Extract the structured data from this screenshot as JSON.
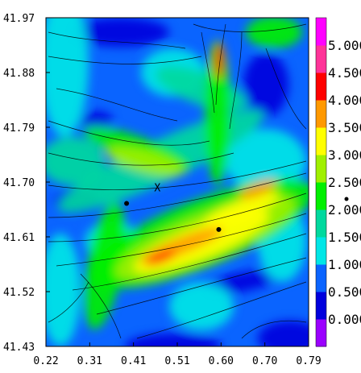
{
  "chart_data": {
    "type": "heatmap",
    "title": "",
    "xlabel": "",
    "ylabel": "",
    "xlim": [
      0.22,
      0.79
    ],
    "ylim": [
      41.43,
      41.97
    ],
    "x_ticks": [
      "0.22",
      "0.31",
      "0.41",
      "0.51",
      "0.60",
      "0.70",
      "0.79"
    ],
    "y_ticks": [
      "41.97",
      "41.88",
      "41.79",
      "41.70",
      "41.61",
      "41.52",
      "41.43"
    ],
    "overlay": "streamlines with arrowheads",
    "marker_label": "X",
    "markers": [
      {
        "x": 0.395,
        "y": 41.665
      },
      {
        "x": 0.595,
        "y": 41.622
      }
    ],
    "colorbar": {
      "min": -0.5,
      "max": 5.5,
      "labels": [
        "0.000",
        "0.500",
        "1.000",
        "1.500",
        "2.000",
        "2.500",
        "3.000",
        "3.500",
        "4.000",
        "4.500",
        "5.000"
      ],
      "colors": [
        "#9b00ff",
        "#0000dd",
        "#0a64ff",
        "#00e6e6",
        "#00d99e",
        "#00f000",
        "#a0f000",
        "#ffff00",
        "#ff9900",
        "#ff0000",
        "#ff3399",
        "#ff00ff"
      ]
    }
  }
}
